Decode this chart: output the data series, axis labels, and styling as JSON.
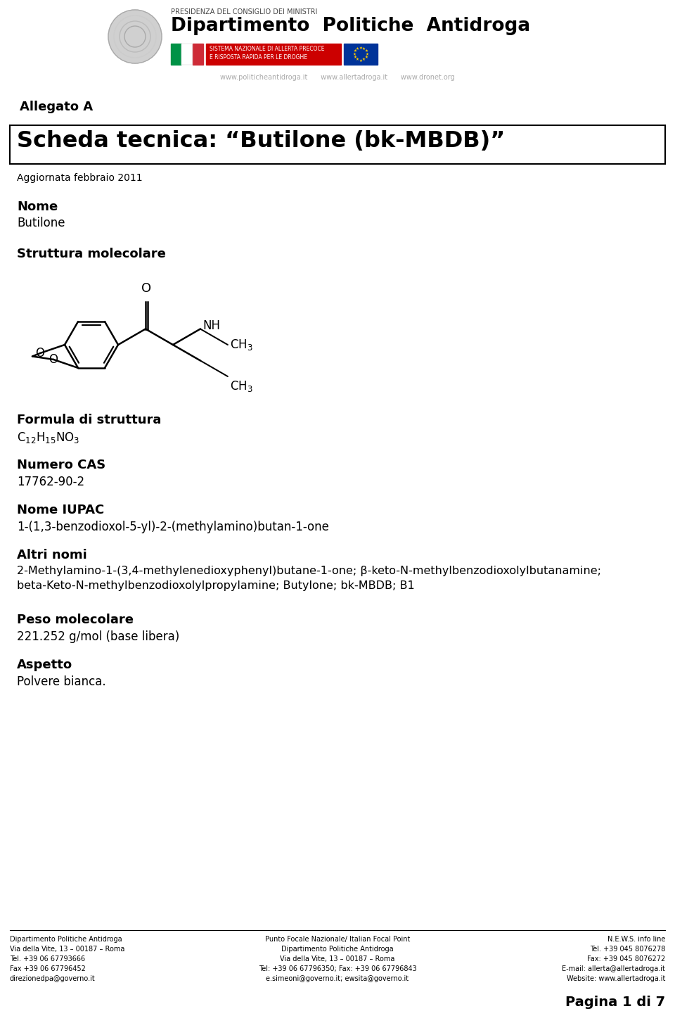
{
  "title_box": "Scheda tecnica: “Butilone (bk-MBDB)”",
  "allegato": "Allegato A",
  "aggiornata": "Aggiornata febbraio 2011",
  "nome_label": "Nome",
  "nome_value": "Butilone",
  "struttura_label": "Struttura molecolare",
  "formula_label": "Formula di struttura",
  "formula_value": "C$_{12}$H$_{15}$NO$_3$",
  "cas_label": "Numero CAS",
  "cas_value": "17762-90-2",
  "iupac_label": "Nome IUPAC",
  "iupac_value": "1-(1,3-benzodioxol-5-yl)-2-(methylamino)butan-1-one",
  "altri_label": "Altri nomi",
  "altri_value": "2-Methylamino-1-(3,4-methylenedioxyphenyl)butane-1-one; β-keto-N-methylbenzodioxolylbutanamine;\nbeta-Keto-N-methylbenzodioxolylpropylamine; Butylone; bk-MBDB; B1",
  "peso_label": "Peso molecolare",
  "peso_value": "221.252 g/mol (base libera)",
  "aspetto_label": "Aspetto",
  "aspetto_value": "Polvere bianca.",
  "websites": "www.politicheantidroga.it      www.allertadroga.it      www.dronet.org",
  "footer_left": "Dipartimento Politiche Antidroga\nVia della Vite, 13 – 00187 – Roma\nTel. +39 06 67793666\nFax +39 06 67796452\ndirezionedpa@governo.it",
  "footer_center": "Punto Focale Nazionale/ Italian Focal Point\nDipartimento Politiche Antidroga\nVia della Vite, 13 – 00187 – Roma\nTel: +39 06 67796350; Fax: +39 06 67796843\ne.simeoni@governo.it; ewsita@governo.it",
  "footer_right": "N.E.W.S. info line\nTel. +39 045 8076278\nFax: +39 045 8076272\nE-mail: allerta@allertadroga.it\nWebsite: www.allertadroga.it",
  "pagina": "Pagina 1 di 7",
  "bg_color": "#ffffff"
}
